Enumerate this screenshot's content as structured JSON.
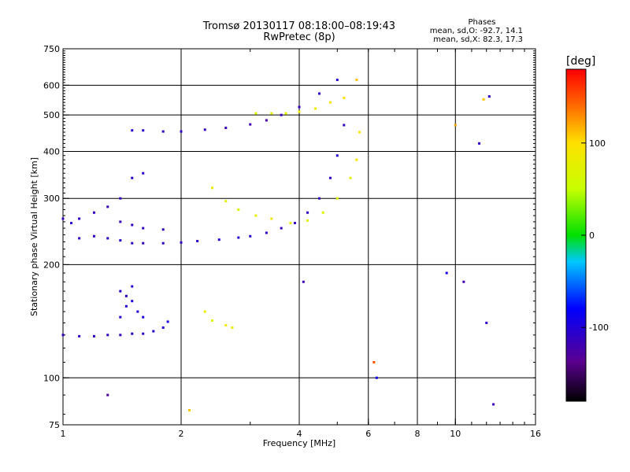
{
  "title": {
    "line1": "Tromsø 20130117 08:18:00–08:19:43",
    "line2": "RwPretec (8p)"
  },
  "stats": {
    "header": "Phases",
    "o_mode": "mean, sd,O: -92.7, 14.1",
    "x_mode": "mean, sd,X:  82.3, 17.3"
  },
  "colorbar": {
    "unit_label": "[deg]",
    "ticks": [
      {
        "value": 100,
        "label": "100"
      },
      {
        "value": 0,
        "label": "0"
      },
      {
        "value": -100,
        "label": "-100"
      }
    ],
    "range": [
      -180,
      180
    ]
  },
  "chart_data": {
    "type": "scatter",
    "title": "Tromsø 20130117 08:18:00–08:19:43",
    "subtitle": "RwPretec (8p)",
    "xlabel": "Frequency [MHz]",
    "ylabel": "Stationary phase Virtual Height [km]",
    "xscale": "log",
    "yscale": "log",
    "xlim": [
      1,
      16
    ],
    "ylim": [
      75,
      750
    ],
    "x_ticks": [
      {
        "v": 1,
        "label": "1"
      },
      {
        "v": 2,
        "label": "2"
      },
      {
        "v": 4,
        "label": "4"
      },
      {
        "v": 6,
        "label": "6"
      },
      {
        "v": 8,
        "label": "8"
      },
      {
        "v": 10,
        "label": "10"
      },
      {
        "v": 16,
        "label": "16"
      }
    ],
    "y_ticks": [
      {
        "v": 75,
        "label": "75"
      },
      {
        "v": 100,
        "label": "100"
      },
      {
        "v": 200,
        "label": "200"
      },
      {
        "v": 300,
        "label": "300"
      },
      {
        "v": 400,
        "label": "400"
      },
      {
        "v": 500,
        "label": "500"
      },
      {
        "v": 600,
        "label": "600"
      },
      {
        "v": 750,
        "label": "750"
      }
    ],
    "x_grid": [
      2,
      4,
      6,
      8,
      10
    ],
    "y_grid": [
      100,
      200,
      300,
      400,
      500,
      600
    ],
    "series": [
      {
        "points": [
          [
            1.0,
            130,
            -110
          ],
          [
            1.1,
            129,
            -110
          ],
          [
            1.2,
            129,
            -110
          ],
          [
            1.3,
            130,
            -112
          ],
          [
            1.4,
            130,
            -112
          ],
          [
            1.5,
            131,
            -110
          ],
          [
            1.6,
            131,
            -108
          ],
          [
            1.7,
            133,
            -105
          ],
          [
            1.8,
            136,
            -100
          ],
          [
            1.85,
            141,
            -95
          ]
        ]
      },
      {
        "points": [
          [
            1.4,
            145,
            -100
          ],
          [
            1.45,
            155,
            -100
          ],
          [
            1.5,
            160,
            -95
          ],
          [
            1.55,
            150,
            -100
          ],
          [
            1.4,
            170,
            -105
          ],
          [
            1.5,
            175,
            -100
          ],
          [
            1.6,
            145,
            -95
          ],
          [
            1.45,
            165,
            -110
          ]
        ]
      },
      {
        "points": [
          [
            1.0,
            265,
            -110
          ],
          [
            1.05,
            258,
            -110
          ],
          [
            1.1,
            235,
            -112
          ],
          [
            1.2,
            238,
            -110
          ],
          [
            1.3,
            235,
            -108
          ],
          [
            1.4,
            232,
            -105
          ],
          [
            1.5,
            228,
            -110
          ],
          [
            1.6,
            228,
            -112
          ],
          [
            1.8,
            228,
            -110
          ],
          [
            2.0,
            229,
            -108
          ],
          [
            2.2,
            231,
            -108
          ],
          [
            2.5,
            233,
            -106
          ],
          [
            2.8,
            236,
            -105
          ],
          [
            3.0,
            238,
            -105
          ],
          [
            3.3,
            243,
            -110
          ],
          [
            3.6,
            250,
            -115
          ],
          [
            3.9,
            258,
            -112
          ],
          [
            4.2,
            275,
            -110
          ],
          [
            4.5,
            300,
            -112
          ],
          [
            4.8,
            340,
            -110
          ],
          [
            5.0,
            390,
            -105
          ],
          [
            5.2,
            470,
            -110
          ]
        ]
      },
      {
        "points": [
          [
            1.1,
            265,
            -110
          ],
          [
            1.2,
            275,
            -112
          ],
          [
            1.3,
            285,
            -115
          ],
          [
            1.4,
            300,
            -110
          ],
          [
            1.5,
            340,
            -105
          ],
          [
            1.6,
            350,
            -108
          ],
          [
            1.4,
            260,
            -115
          ],
          [
            1.5,
            255,
            -110
          ],
          [
            1.6,
            250,
            -110
          ],
          [
            1.8,
            248,
            -112
          ]
        ]
      },
      {
        "points": [
          [
            1.5,
            455,
            -100
          ],
          [
            1.6,
            455,
            -105
          ],
          [
            1.8,
            452,
            -110
          ],
          [
            2.0,
            452,
            -110
          ],
          [
            2.3,
            457,
            -110
          ],
          [
            2.6,
            462,
            -115
          ],
          [
            3.0,
            472,
            -120
          ],
          [
            3.3,
            484,
            -125
          ],
          [
            3.6,
            500,
            -115
          ],
          [
            4.0,
            525,
            -110
          ],
          [
            4.5,
            570,
            -108
          ],
          [
            5.0,
            620,
            -105
          ]
        ]
      },
      {
        "points": [
          [
            2.4,
            320,
            80
          ],
          [
            2.6,
            295,
            75
          ],
          [
            2.8,
            280,
            70
          ],
          [
            3.1,
            270,
            80
          ],
          [
            3.4,
            265,
            85
          ],
          [
            3.8,
            258,
            80
          ],
          [
            4.2,
            262,
            75
          ],
          [
            4.6,
            275,
            70
          ],
          [
            5.0,
            300,
            70
          ],
          [
            5.4,
            340,
            75
          ],
          [
            5.6,
            380,
            90
          ],
          [
            5.7,
            450,
            100
          ]
        ]
      },
      {
        "points": [
          [
            3.1,
            505,
            70
          ],
          [
            3.4,
            505,
            75
          ],
          [
            3.7,
            505,
            80
          ],
          [
            4.0,
            510,
            85
          ],
          [
            4.4,
            520,
            90
          ],
          [
            4.8,
            540,
            95
          ],
          [
            5.2,
            555,
            100
          ],
          [
            5.6,
            620,
            110
          ]
        ]
      },
      {
        "points": [
          [
            2.3,
            150,
            80
          ],
          [
            2.4,
            142,
            70
          ],
          [
            2.6,
            138,
            85
          ],
          [
            2.7,
            136,
            90
          ]
        ]
      },
      {
        "points": [
          [
            1.3,
            90,
            -130
          ],
          [
            2.1,
            82,
            110
          ],
          [
            4.1,
            180,
            -120
          ],
          [
            6.2,
            110,
            150
          ],
          [
            6.3,
            100,
            -90
          ],
          [
            9.5,
            190,
            -90
          ],
          [
            10.0,
            470,
            120
          ],
          [
            10.5,
            180,
            -120
          ],
          [
            11.5,
            420,
            -110
          ],
          [
            12.0,
            140,
            -110
          ],
          [
            12.2,
            560,
            -105
          ],
          [
            12.5,
            85,
            -115
          ],
          [
            11.8,
            550,
            110
          ]
        ]
      }
    ]
  }
}
